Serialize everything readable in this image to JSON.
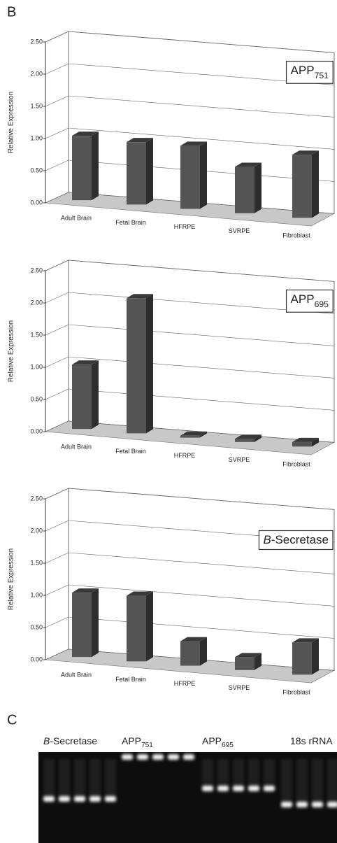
{
  "panels": {
    "b": "B",
    "c": "C"
  },
  "chart_data": [
    {
      "type": "bar",
      "ylabel": "Relative Expression",
      "annotation": [
        {
          "text": "APP"
        },
        {
          "text": "751",
          "sub": true
        }
      ],
      "categories": [
        "Adult Brain",
        "Fetal Brain",
        "HFRPE",
        "SVRPE",
        "Fibroblast"
      ],
      "values": [
        1.0,
        0.97,
        0.98,
        0.72,
        0.98
      ],
      "color": "#555555",
      "ylim": [
        0,
        2.5
      ],
      "yticks": [
        {
          "value": 0,
          "label": "0.00"
        },
        {
          "value": 0.5,
          "label": "0.50"
        },
        {
          "value": 1,
          "label": "1.00"
        },
        {
          "value": 1.5,
          "label": "1.50"
        },
        {
          "value": 2,
          "label": "2.00"
        },
        {
          "value": 2.5,
          "label": "2.50"
        }
      ],
      "grid": true
    },
    {
      "type": "bar",
      "ylabel": "Relative Expression",
      "annotation": [
        {
          "text": "APP"
        },
        {
          "text": "695",
          "sub": true
        }
      ],
      "categories": [
        "Adult Brain",
        "Fetal Brain",
        "HFRPE",
        "SVRPE",
        "Fibroblast"
      ],
      "values": [
        1.0,
        2.1,
        0.03,
        0.05,
        0.07
      ],
      "color": "#555555",
      "ylim": [
        0,
        2.5
      ],
      "yticks": [
        {
          "value": 0,
          "label": "0.00"
        },
        {
          "value": 0.5,
          "label": "0.50"
        },
        {
          "value": 1,
          "label": "1.00"
        },
        {
          "value": 1.5,
          "label": "1.50"
        },
        {
          "value": 2,
          "label": "2.00"
        },
        {
          "value": 2.5,
          "label": "2.50"
        }
      ],
      "grid": true
    },
    {
      "type": "bar",
      "ylabel": "Relative Expression",
      "annotation": [
        {
          "text": "B",
          "italic": true
        },
        {
          "text": "-Secretase"
        }
      ],
      "categories": [
        "Adult Brain",
        "Fetal Brain",
        "HFRPE",
        "SVRPE",
        "Fibroblast"
      ],
      "values": [
        1.0,
        1.02,
        0.38,
        0.2,
        0.5
      ],
      "color": "#555555",
      "ylim": [
        0,
        2.5
      ],
      "yticks": [
        {
          "value": 0,
          "label": "0.00"
        },
        {
          "value": 0.5,
          "label": "0.50"
        },
        {
          "value": 1,
          "label": "1.00"
        },
        {
          "value": 1.5,
          "label": "1.50"
        },
        {
          "value": 2,
          "label": "2.00"
        },
        {
          "value": 2.5,
          "label": "2.50"
        }
      ],
      "grid": true
    }
  ],
  "gel": {
    "lanes": [
      {
        "label": [
          {
            "text": "B",
            "italic": true
          },
          {
            "text": "-Secretase"
          }
        ]
      },
      {
        "label": [
          {
            "text": "APP"
          },
          {
            "text": "751",
            "sub": true
          }
        ]
      },
      {
        "label": [
          {
            "text": "APP"
          },
          {
            "text": "695",
            "sub": true
          }
        ]
      },
      {
        "label": [
          {
            "text": "18s rRNA"
          }
        ]
      }
    ]
  }
}
